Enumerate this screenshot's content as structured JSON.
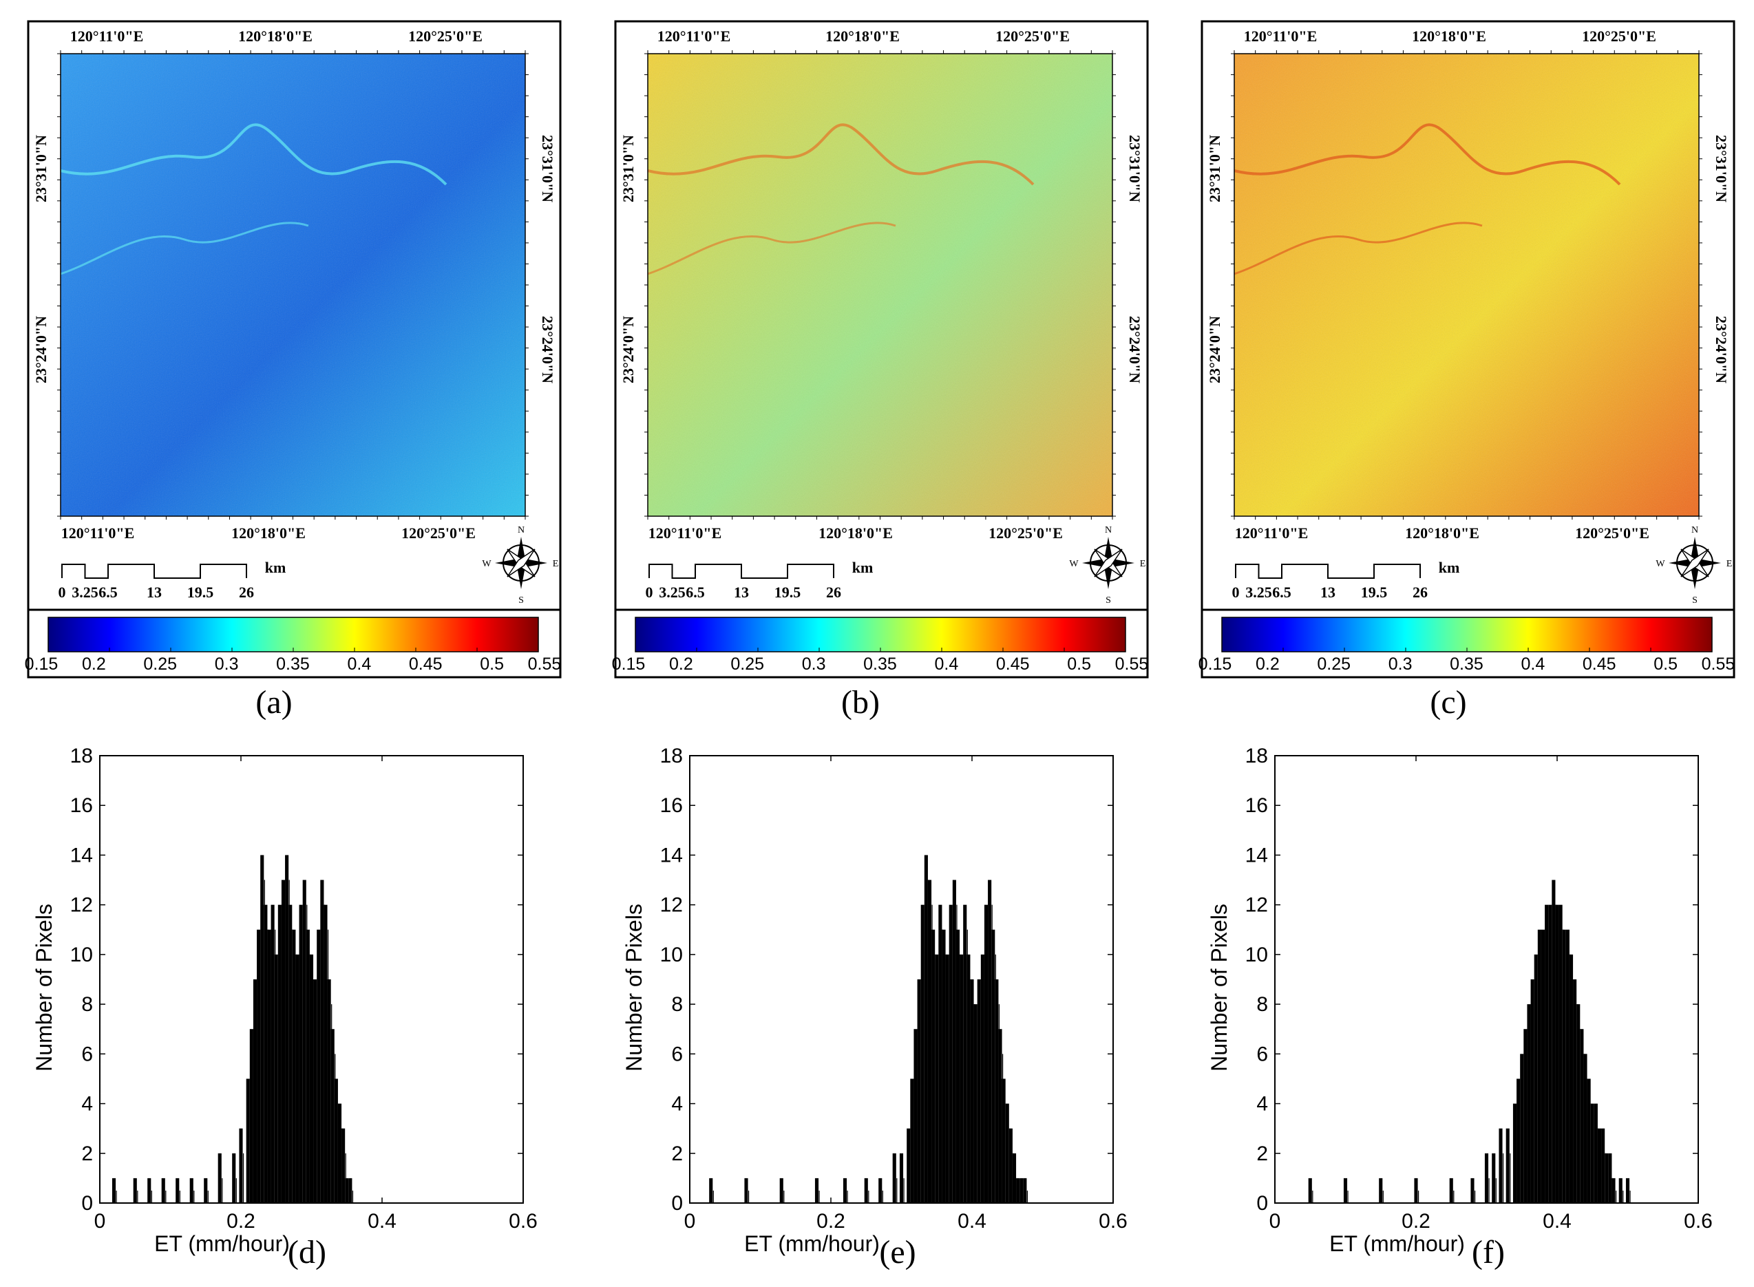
{
  "figure": {
    "panel_labels": [
      "(a)",
      "(b)",
      "(c)",
      "(d)",
      "(e)",
      "(f)"
    ]
  },
  "maps": {
    "top_lon_ticks": [
      "120°11'0\"E",
      "120°18'0\"E",
      "120°25'0\"E"
    ],
    "bottom_lon_ticks": [
      "120°11'0\"E",
      "120°18'0\"E",
      "120°25'0\"E"
    ],
    "left_lat_ticks": [
      "23°31'0\"N",
      "23°24'0\"N"
    ],
    "right_lat_ticks": [
      "23°31'0\"N",
      "23°24'0\"N"
    ],
    "scale_bar": {
      "labels": [
        "0",
        "3.25",
        "6.5",
        "13",
        "19.5",
        "26"
      ],
      "unit": "km"
    },
    "north_arrow": {
      "N": "N",
      "S": "S",
      "E": "E",
      "W": "W"
    },
    "colorbar": {
      "ticks": [
        "0.15",
        "0.2",
        "0.25",
        "0.3",
        "0.35",
        "0.4",
        "0.45",
        "0.5",
        "0.55"
      ],
      "colors": [
        "#00007f",
        "#0000ff",
        "#007fff",
        "#00ffff",
        "#7fff7f",
        "#ffff00",
        "#ff7f00",
        "#ff0000",
        "#7f0000"
      ]
    },
    "panels": [
      {
        "id": "a",
        "base_color": "#1d8ff0",
        "gradient": [
          "#2e9cf2",
          "#1566e0",
          "#2fc6f0"
        ]
      },
      {
        "id": "b",
        "base_color": "#b9e65a",
        "gradient": [
          "#f2d23a",
          "#9fe78a",
          "#f0b040"
        ]
      },
      {
        "id": "c",
        "base_color": "#f2c030",
        "gradient": [
          "#f5a030",
          "#f5dc30",
          "#ef6a20"
        ]
      }
    ]
  },
  "chart_data": [
    {
      "type": "bar",
      "title": "",
      "xlabel": "ET (mm/hour)",
      "ylabel": "Number of Pixels",
      "xlim": [
        0,
        0.6
      ],
      "ylim": [
        0,
        18
      ],
      "xticks": [
        "0",
        "0.2",
        "0.4",
        "0.6"
      ],
      "yticks": [
        "0",
        "2",
        "4",
        "6",
        "8",
        "10",
        "12",
        "14",
        "16",
        "18"
      ],
      "x": [
        0.02,
        0.05,
        0.07,
        0.09,
        0.11,
        0.13,
        0.15,
        0.17,
        0.19,
        0.2,
        0.21,
        0.215,
        0.22,
        0.225,
        0.23,
        0.235,
        0.24,
        0.245,
        0.25,
        0.255,
        0.26,
        0.265,
        0.27,
        0.275,
        0.28,
        0.285,
        0.29,
        0.295,
        0.3,
        0.305,
        0.31,
        0.315,
        0.32,
        0.325,
        0.33,
        0.335,
        0.34,
        0.345,
        0.35,
        0.355
      ],
      "values": [
        1,
        1,
        1,
        1,
        1,
        1,
        1,
        2,
        2,
        3,
        5,
        7,
        9,
        11,
        14,
        12,
        11,
        12,
        10,
        12,
        13,
        14,
        12,
        11,
        10,
        12,
        13,
        11,
        10,
        9,
        11,
        13,
        12,
        9,
        7,
        5,
        4,
        3,
        1,
        1
      ]
    },
    {
      "type": "bar",
      "title": "",
      "xlabel": "ET (mm/hour)",
      "ylabel": "Number of Pixels",
      "xlim": [
        0,
        0.6
      ],
      "ylim": [
        0,
        18
      ],
      "xticks": [
        "0",
        "0.2",
        "0.4",
        "0.6"
      ],
      "yticks": [
        "0",
        "2",
        "4",
        "6",
        "8",
        "10",
        "12",
        "14",
        "16",
        "18"
      ],
      "x": [
        0.03,
        0.08,
        0.13,
        0.18,
        0.22,
        0.25,
        0.27,
        0.29,
        0.3,
        0.31,
        0.315,
        0.32,
        0.325,
        0.33,
        0.335,
        0.34,
        0.345,
        0.35,
        0.355,
        0.36,
        0.365,
        0.37,
        0.375,
        0.38,
        0.385,
        0.39,
        0.395,
        0.4,
        0.405,
        0.41,
        0.415,
        0.42,
        0.425,
        0.43,
        0.435,
        0.44,
        0.445,
        0.45,
        0.455,
        0.46,
        0.465,
        0.47,
        0.475
      ],
      "values": [
        1,
        1,
        1,
        1,
        1,
        1,
        1,
        2,
        2,
        3,
        5,
        7,
        9,
        12,
        14,
        13,
        11,
        10,
        12,
        11,
        10,
        12,
        13,
        11,
        10,
        12,
        10,
        9,
        8,
        9,
        10,
        12,
        13,
        11,
        9,
        7,
        5,
        4,
        3,
        2,
        1,
        1,
        1
      ]
    },
    {
      "type": "bar",
      "title": "",
      "xlabel": "ET (mm/hour)",
      "ylabel": "Number of Pixels",
      "xlim": [
        0,
        0.6
      ],
      "ylim": [
        0,
        18
      ],
      "xticks": [
        "0",
        "0.2",
        "0.4",
        "0.6"
      ],
      "yticks": [
        "0",
        "2",
        "4",
        "6",
        "8",
        "10",
        "12",
        "14",
        "16",
        "18"
      ],
      "x": [
        0.05,
        0.1,
        0.15,
        0.2,
        0.25,
        0.28,
        0.3,
        0.31,
        0.32,
        0.33,
        0.34,
        0.345,
        0.35,
        0.355,
        0.36,
        0.365,
        0.37,
        0.375,
        0.38,
        0.385,
        0.39,
        0.395,
        0.4,
        0.405,
        0.41,
        0.415,
        0.42,
        0.425,
        0.43,
        0.435,
        0.44,
        0.445,
        0.45,
        0.455,
        0.46,
        0.465,
        0.47,
        0.475,
        0.48,
        0.49,
        0.5
      ],
      "values": [
        1,
        1,
        1,
        1,
        1,
        1,
        2,
        2,
        3,
        3,
        4,
        5,
        6,
        7,
        8,
        9,
        10,
        11,
        11,
        12,
        12,
        13,
        12,
        12,
        11,
        11,
        10,
        9,
        8,
        7,
        6,
        5,
        4,
        4,
        3,
        3,
        2,
        2,
        1,
        1,
        1
      ]
    }
  ]
}
